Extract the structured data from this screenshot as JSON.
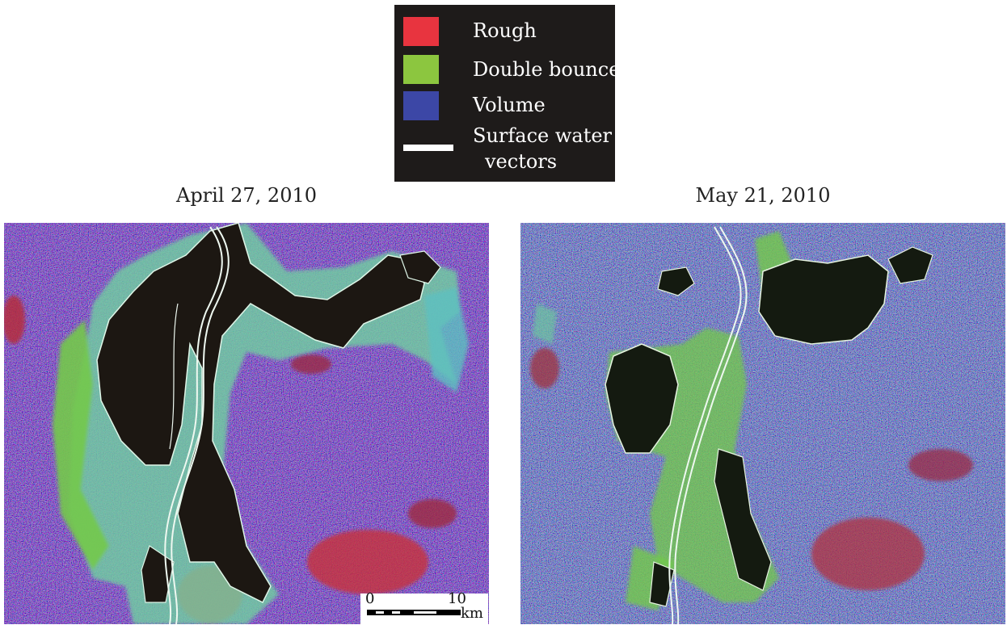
{
  "legend": {
    "items": [
      {
        "label": "Rough",
        "color": "#e8343f"
      },
      {
        "label": "Double bounce",
        "color": "#8cc63f"
      },
      {
        "label": "Volume",
        "color": "#3c47a6"
      }
    ],
    "vector_label_line1": "Surface water",
    "vector_label_line2": "vectors",
    "vector_color": "#ffffff"
  },
  "panels": [
    {
      "title": "April 27, 2010"
    },
    {
      "title": "May 21, 2010"
    }
  ],
  "scale": {
    "start": "0",
    "end": "10",
    "unit": "km"
  },
  "colors": {
    "water": "#1c1712",
    "flooded_vegetation": "#73c94a",
    "background_volume": "#4b3f9c"
  }
}
